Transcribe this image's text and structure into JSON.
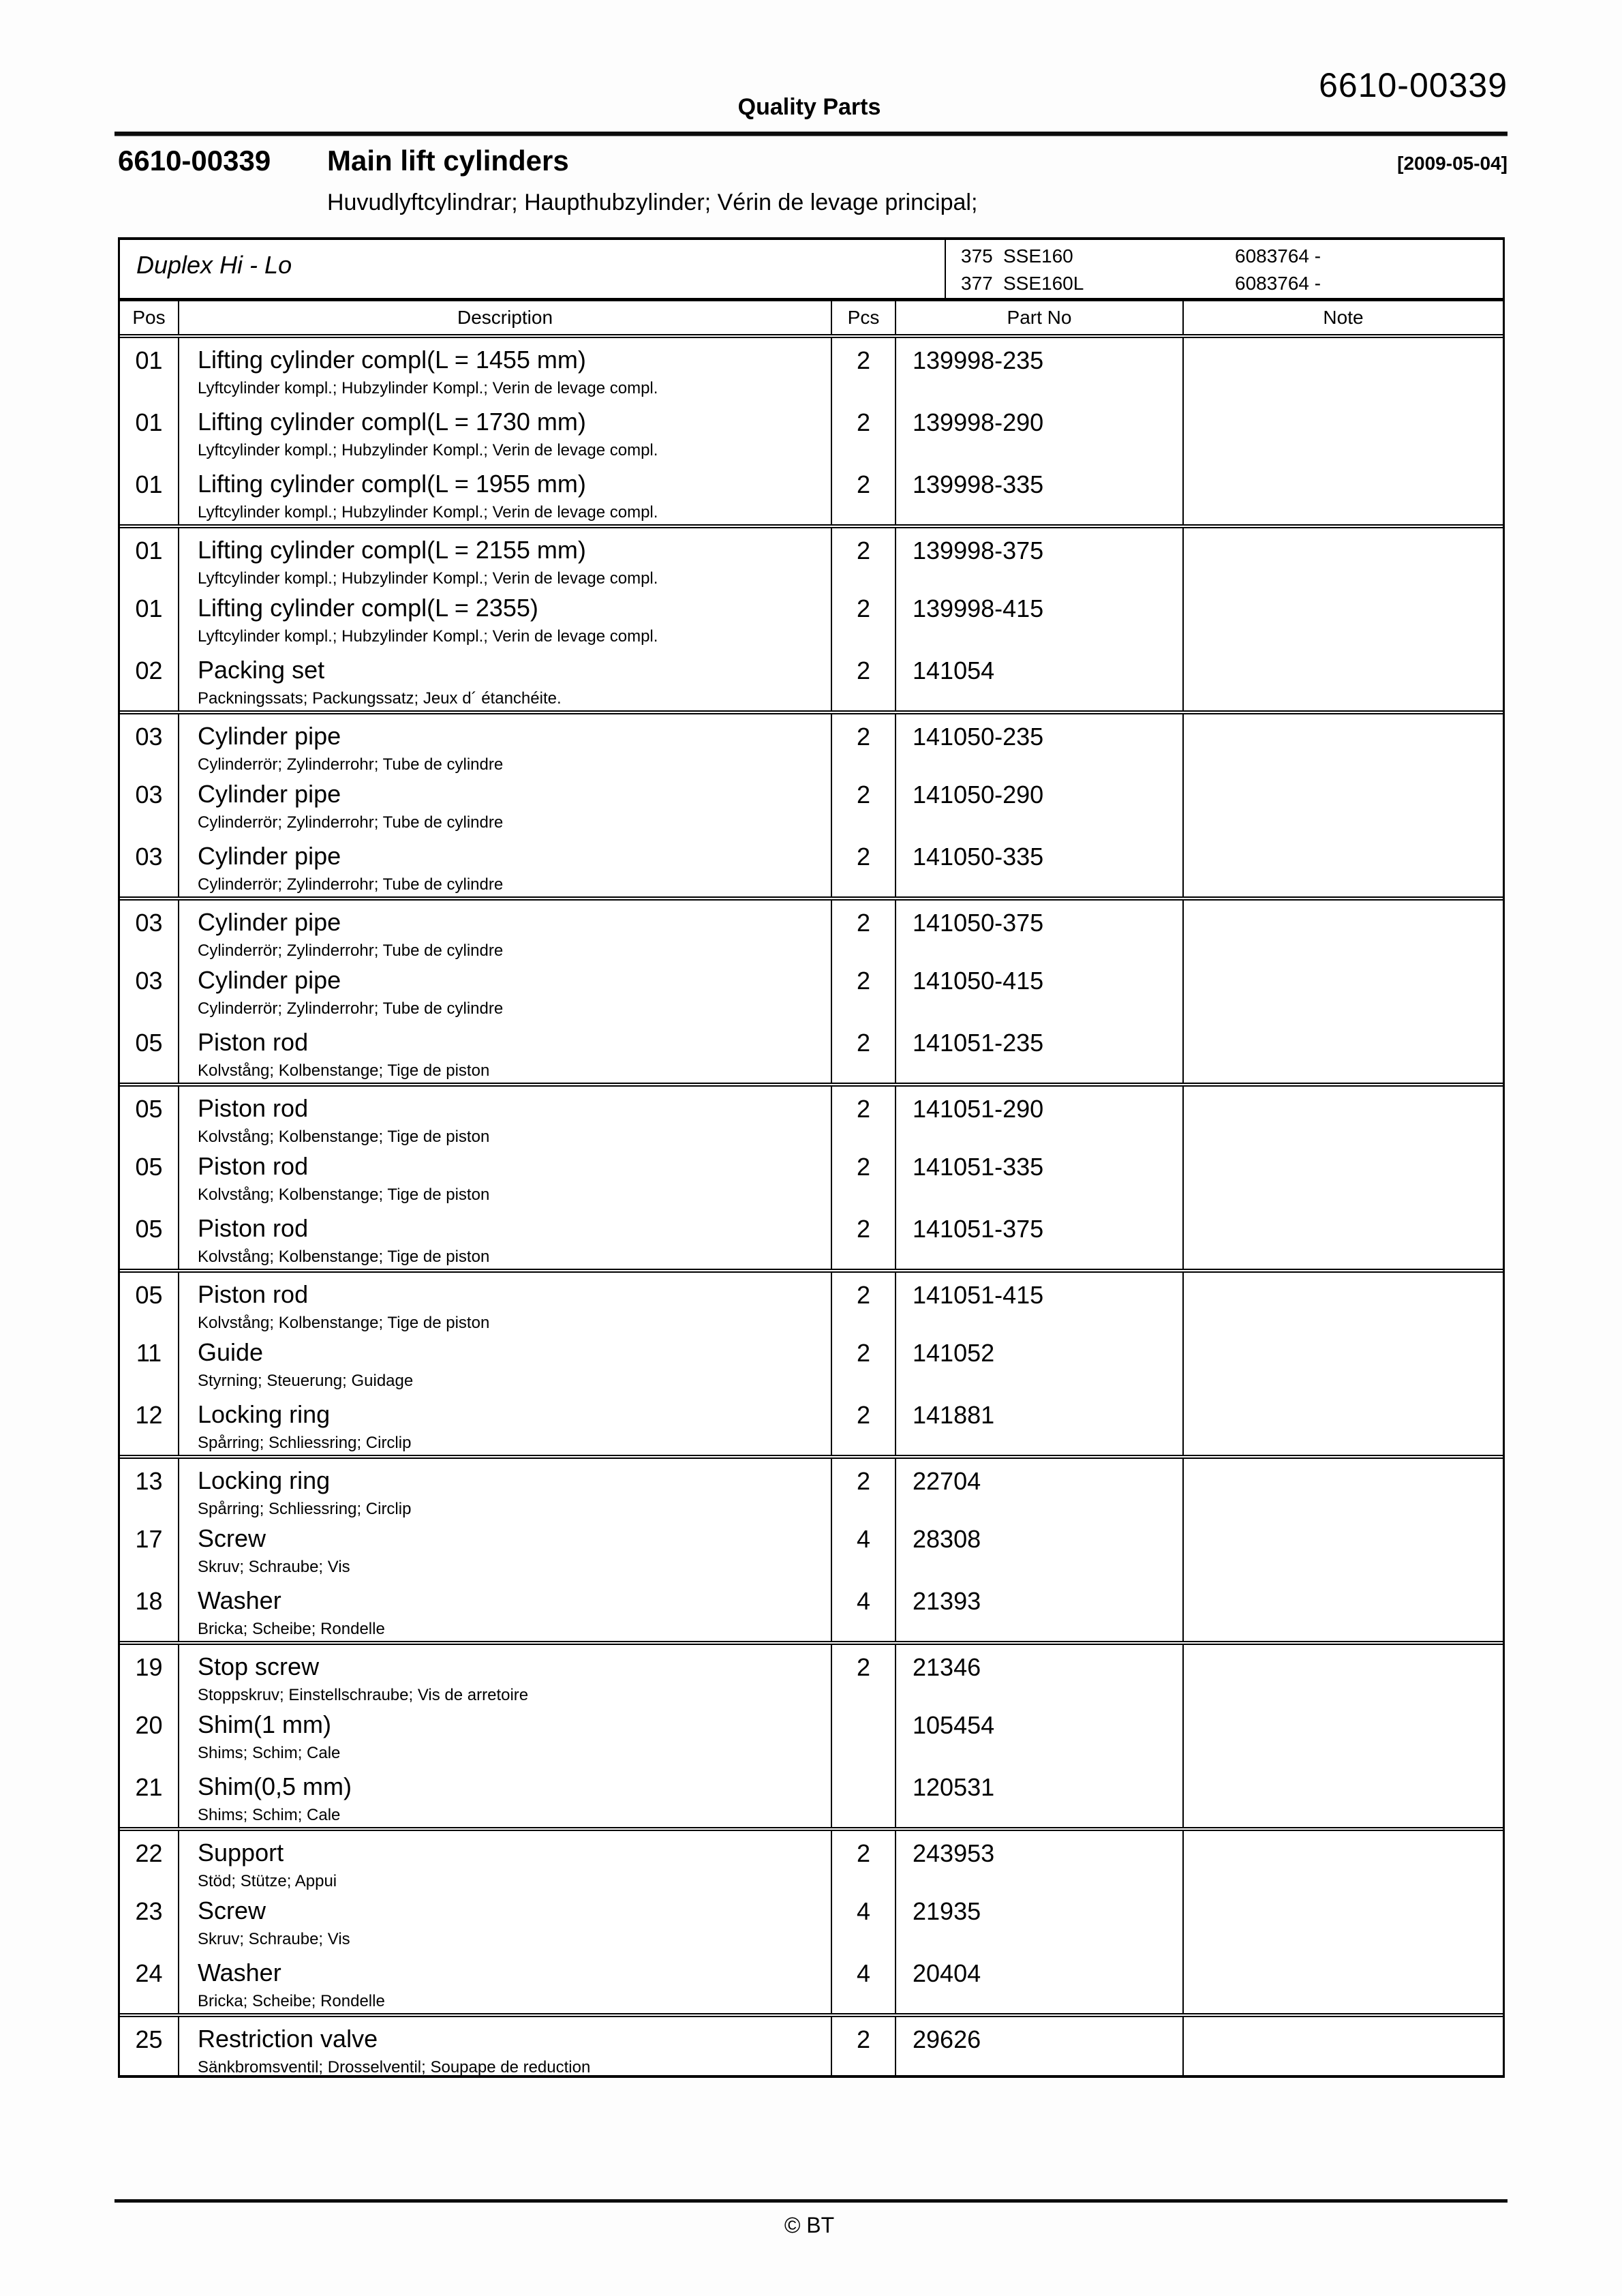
{
  "page": {
    "brand": "Quality Parts",
    "doc_no": "6610-00339",
    "title_no": "6610-00339",
    "title": "Main lift cylinders",
    "date": "[2009-05-04]",
    "subtitle": "Huvudlyftcylindrar; Haupthubzylinder; Vérin de levage principal;",
    "footer": "© BT"
  },
  "model_box": {
    "name": "Duplex Hi - Lo",
    "variants": [
      {
        "code": "375",
        "model": "SSE160",
        "serial": "6083764 -"
      },
      {
        "code": "377",
        "model": "SSE160L",
        "serial": "6083764 -"
      }
    ]
  },
  "table": {
    "headers": {
      "pos": "Pos",
      "description": "Description",
      "pcs": "Pcs",
      "part_no": "Part No",
      "note": "Note"
    },
    "rows": [
      {
        "pos": "01",
        "desc": "Lifting cylinder compl(L = 1455 mm)",
        "sub": "Lyftcylinder kompl.; Hubzylinder Kompl.; Verin de levage compl.",
        "pcs": "2",
        "part": "139998-235",
        "note": "",
        "group_start": false
      },
      {
        "pos": "01",
        "desc": "Lifting cylinder compl(L = 1730 mm)",
        "sub": "Lyftcylinder kompl.; Hubzylinder Kompl.; Verin de levage compl.",
        "pcs": "2",
        "part": "139998-290",
        "note": "",
        "group_start": false
      },
      {
        "pos": "01",
        "desc": "Lifting cylinder compl(L = 1955 mm)",
        "sub": "Lyftcylinder kompl.; Hubzylinder Kompl.; Verin de levage compl.",
        "pcs": "2",
        "part": "139998-335",
        "note": "",
        "group_start": false
      },
      {
        "pos": "01",
        "desc": "Lifting cylinder compl(L = 2155 mm)",
        "sub": "Lyftcylinder kompl.; Hubzylinder Kompl.; Verin de levage compl.",
        "pcs": "2",
        "part": "139998-375",
        "note": "",
        "group_start": true
      },
      {
        "pos": "01",
        "desc": "Lifting cylinder compl(L = 2355)",
        "sub": "Lyftcylinder kompl.; Hubzylinder Kompl.; Verin de levage compl.",
        "pcs": "2",
        "part": "139998-415",
        "note": "",
        "group_start": false
      },
      {
        "pos": "02",
        "desc": "Packing set",
        "sub": "Packningssats; Packungssatz; Jeux d´ étanchéite.",
        "pcs": "2",
        "part": "141054",
        "note": "",
        "group_start": false
      },
      {
        "pos": "03",
        "desc": "Cylinder pipe",
        "sub": "Cylinderrör; Zylinderrohr; Tube de cylindre",
        "pcs": "2",
        "part": "141050-235",
        "note": "",
        "group_start": true
      },
      {
        "pos": "03",
        "desc": "Cylinder pipe",
        "sub": "Cylinderrör; Zylinderrohr; Tube de cylindre",
        "pcs": "2",
        "part": "141050-290",
        "note": "",
        "group_start": false
      },
      {
        "pos": "03",
        "desc": "Cylinder pipe",
        "sub": "Cylinderrör; Zylinderrohr; Tube de cylindre",
        "pcs": "2",
        "part": "141050-335",
        "note": "",
        "group_start": false
      },
      {
        "pos": "03",
        "desc": "Cylinder pipe",
        "sub": "Cylinderrör; Zylinderrohr; Tube de cylindre",
        "pcs": "2",
        "part": "141050-375",
        "note": "",
        "group_start": true
      },
      {
        "pos": "03",
        "desc": "Cylinder pipe",
        "sub": "Cylinderrör; Zylinderrohr; Tube de cylindre",
        "pcs": "2",
        "part": "141050-415",
        "note": "",
        "group_start": false
      },
      {
        "pos": "05",
        "desc": "Piston rod",
        "sub": "Kolvstång; Kolbenstange; Tige de piston",
        "pcs": "2",
        "part": "141051-235",
        "note": "",
        "group_start": false
      },
      {
        "pos": "05",
        "desc": "Piston rod",
        "sub": "Kolvstång; Kolbenstange; Tige de piston",
        "pcs": "2",
        "part": "141051-290",
        "note": "",
        "group_start": true
      },
      {
        "pos": "05",
        "desc": "Piston rod",
        "sub": "Kolvstång; Kolbenstange; Tige de piston",
        "pcs": "2",
        "part": "141051-335",
        "note": "",
        "group_start": false
      },
      {
        "pos": "05",
        "desc": "Piston rod",
        "sub": "Kolvstång; Kolbenstange; Tige de piston",
        "pcs": "2",
        "part": "141051-375",
        "note": "",
        "group_start": false
      },
      {
        "pos": "05",
        "desc": "Piston rod",
        "sub": "Kolvstång; Kolbenstange; Tige de piston",
        "pcs": "2",
        "part": "141051-415",
        "note": "",
        "group_start": true
      },
      {
        "pos": "11",
        "desc": "Guide",
        "sub": "Styrning; Steuerung; Guidage",
        "pcs": "2",
        "part": "141052",
        "note": "",
        "group_start": false
      },
      {
        "pos": "12",
        "desc": "Locking ring",
        "sub": "Spårring; Schliessring; Circlip",
        "pcs": "2",
        "part": "141881",
        "note": "",
        "group_start": false
      },
      {
        "pos": "13",
        "desc": "Locking ring",
        "sub": "Spårring; Schliessring; Circlip",
        "pcs": "2",
        "part": "22704",
        "note": "",
        "group_start": true
      },
      {
        "pos": "17",
        "desc": "Screw",
        "sub": "Skruv; Schraube; Vis",
        "pcs": "4",
        "part": "28308",
        "note": "",
        "group_start": false
      },
      {
        "pos": "18",
        "desc": "Washer",
        "sub": "Bricka; Scheibe; Rondelle",
        "pcs": "4",
        "part": "21393",
        "note": "",
        "group_start": false
      },
      {
        "pos": "19",
        "desc": "Stop screw",
        "sub": "Stoppskruv; Einstellschraube; Vis de arretoire",
        "pcs": "2",
        "part": "21346",
        "note": "",
        "group_start": true
      },
      {
        "pos": "20",
        "desc": "Shim(1 mm)",
        "sub": "Shims; Schim; Cale",
        "pcs": "",
        "part": "105454",
        "note": "",
        "group_start": false
      },
      {
        "pos": "21",
        "desc": "Shim(0,5 mm)",
        "sub": "Shims; Schim; Cale",
        "pcs": "",
        "part": "120531",
        "note": "",
        "group_start": false
      },
      {
        "pos": "22",
        "desc": "Support",
        "sub": "Stöd; Stütze; Appui",
        "pcs": "2",
        "part": "243953",
        "note": "",
        "group_start": true
      },
      {
        "pos": "23",
        "desc": "Screw",
        "sub": "Skruv; Schraube; Vis",
        "pcs": "4",
        "part": "21935",
        "note": "",
        "group_start": false
      },
      {
        "pos": "24",
        "desc": "Washer",
        "sub": "Bricka; Scheibe; Rondelle",
        "pcs": "4",
        "part": "20404",
        "note": "",
        "group_start": false
      },
      {
        "pos": "25",
        "desc": "Restriction valve",
        "sub": "Sänkbromsventil; Drosselventil; Soupape de reduction",
        "pcs": "2",
        "part": "29626",
        "note": "",
        "group_start": true
      }
    ]
  }
}
